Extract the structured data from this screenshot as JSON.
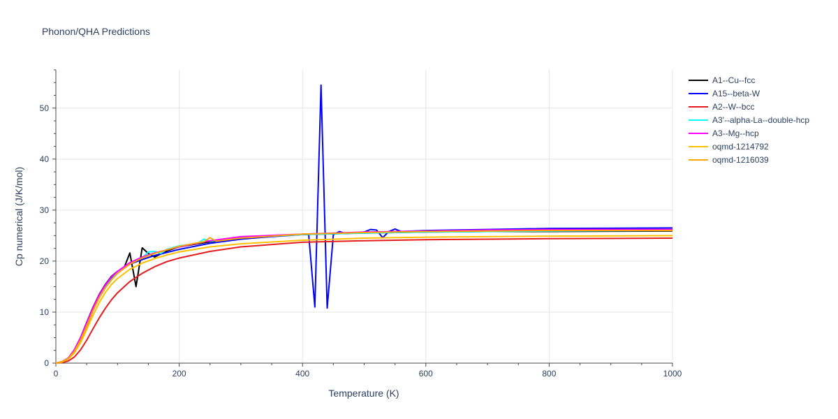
{
  "chart_data": {
    "type": "line",
    "title": "Phonon/QHA Predictions",
    "xlabel": "Temperature (K)",
    "ylabel": "Cp numerical (J/K/mol)",
    "xlim": [
      0,
      1000
    ],
    "ylim": [
      0,
      57.5
    ],
    "x_ticks": [
      0,
      200,
      400,
      600,
      800,
      1000
    ],
    "y_ticks": [
      0,
      10,
      20,
      30,
      40,
      50
    ],
    "grid": true,
    "legend_position": "right",
    "series": [
      {
        "name": "A1--Cu--fcc",
        "color": "#000000",
        "x": [
          0,
          10,
          20,
          30,
          40,
          50,
          60,
          70,
          80,
          90,
          100,
          110,
          120,
          130,
          140,
          150,
          160,
          180,
          200,
          250,
          300,
          400,
          500,
          600,
          700,
          800,
          1000
        ],
        "y": [
          0,
          0.3,
          1.0,
          2.6,
          5.0,
          8.0,
          10.9,
          13.4,
          15.4,
          17.0,
          18.0,
          18.5,
          21.6,
          15.0,
          22.6,
          21.5,
          20.8,
          22.0,
          22.8,
          23.8,
          24.5,
          25.2,
          25.5,
          25.7,
          25.8,
          25.8,
          25.9
        ]
      },
      {
        "name": "A15--beta-W",
        "color": "#0000ff",
        "x": [
          0,
          10,
          20,
          30,
          40,
          50,
          60,
          70,
          80,
          90,
          100,
          120,
          140,
          160,
          180,
          200,
          250,
          300,
          350,
          400,
          410,
          420,
          430,
          440,
          450,
          460,
          470,
          500,
          510,
          520,
          530,
          540,
          550,
          560,
          600,
          700,
          800,
          1000
        ],
        "y": [
          0,
          0.2,
          0.8,
          2.1,
          4.3,
          7.2,
          10.2,
          12.8,
          14.9,
          16.6,
          17.8,
          19.4,
          20.3,
          21.1,
          21.7,
          22.3,
          23.5,
          24.3,
          24.8,
          25.2,
          25.2,
          11.0,
          54.5,
          10.8,
          25.2,
          25.8,
          25.4,
          25.7,
          26.2,
          26.1,
          24.6,
          25.8,
          26.3,
          25.8,
          26.0,
          26.2,
          26.4,
          26.5
        ]
      },
      {
        "name": "A2--W--bcc",
        "color": "#e41a1c",
        "x": [
          0,
          10,
          20,
          30,
          40,
          50,
          60,
          70,
          80,
          90,
          100,
          120,
          140,
          160,
          180,
          200,
          250,
          300,
          400,
          500,
          600,
          700,
          800,
          1000
        ],
        "y": [
          0,
          0.1,
          0.4,
          1.2,
          2.6,
          4.5,
          6.7,
          8.8,
          10.7,
          12.4,
          13.8,
          16.0,
          17.6,
          18.9,
          19.9,
          20.6,
          21.9,
          22.8,
          23.7,
          24.0,
          24.2,
          24.3,
          24.4,
          24.5
        ]
      },
      {
        "name": "A3'--alpha-La--double-hcp",
        "color": "#00ffff",
        "x": [
          0,
          10,
          20,
          30,
          40,
          50,
          60,
          70,
          80,
          90,
          100,
          120,
          140,
          150,
          160,
          170,
          180,
          200,
          230,
          240,
          250,
          300,
          400,
          500,
          600,
          700,
          800,
          1000
        ],
        "y": [
          0,
          0.3,
          1.0,
          2.4,
          4.6,
          7.4,
          10.3,
          12.8,
          14.8,
          16.4,
          17.7,
          19.5,
          20.6,
          21.8,
          21.9,
          21.5,
          22.3,
          23.0,
          23.5,
          24.3,
          23.9,
          24.6,
          25.2,
          25.5,
          25.7,
          25.8,
          25.9,
          26.0
        ]
      },
      {
        "name": "A3--Mg--hcp",
        "color": "#ff00ff",
        "x": [
          0,
          10,
          20,
          30,
          40,
          50,
          60,
          70,
          80,
          90,
          100,
          120,
          140,
          160,
          180,
          200,
          250,
          300,
          400,
          500,
          600,
          700,
          800,
          1000
        ],
        "y": [
          0,
          0.3,
          1.0,
          2.6,
          5.0,
          7.9,
          10.8,
          13.3,
          15.3,
          16.9,
          18.0,
          19.7,
          20.8,
          21.6,
          22.2,
          22.8,
          24.0,
          24.8,
          25.3,
          25.7,
          25.9,
          26.1,
          26.2,
          26.2
        ]
      },
      {
        "name": "oqmd-1214792",
        "color": "#ffc000",
        "x": [
          0,
          10,
          20,
          30,
          40,
          50,
          60,
          70,
          80,
          90,
          100,
          120,
          140,
          160,
          180,
          200,
          250,
          300,
          400,
          500,
          600,
          700,
          800,
          1000
        ],
        "y": [
          0,
          0.2,
          0.8,
          2.0,
          4.0,
          6.6,
          9.3,
          11.8,
          13.8,
          15.4,
          16.6,
          18.4,
          19.6,
          20.5,
          21.2,
          21.8,
          22.8,
          23.4,
          24.1,
          24.5,
          24.7,
          24.8,
          24.9,
          25.0
        ]
      },
      {
        "name": "oqmd-1216039",
        "color": "#ffa500",
        "x": [
          0,
          10,
          20,
          30,
          40,
          50,
          60,
          70,
          80,
          90,
          100,
          120,
          140,
          160,
          180,
          200,
          230,
          240,
          250,
          260,
          300,
          400,
          500,
          600,
          700,
          800,
          1000
        ],
        "y": [
          0,
          0.3,
          0.9,
          2.3,
          4.5,
          7.3,
          10.2,
          12.7,
          14.7,
          16.3,
          17.6,
          19.4,
          20.6,
          21.5,
          22.2,
          22.9,
          23.6,
          23.8,
          24.6,
          23.9,
          24.5,
          25.3,
          25.6,
          25.8,
          25.9,
          26.0,
          26.0
        ]
      }
    ]
  }
}
